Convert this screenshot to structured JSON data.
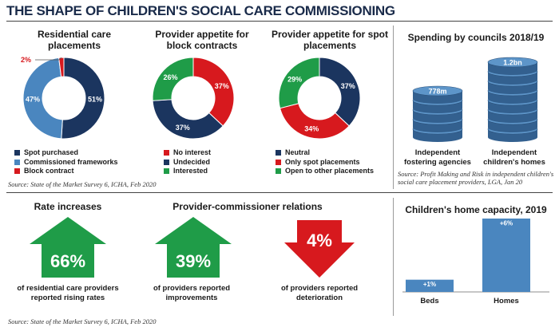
{
  "title": "THE SHAPE OF CHILDREN'S SOCIAL CARE COMMISSIONING",
  "colors": {
    "navy": "#1b355f",
    "blue": "#4a86bf",
    "red": "#d7191e",
    "green": "#1f9c48"
  },
  "donuts": [
    {
      "title": "Residential care placements",
      "slices": [
        {
          "label": "Spot purchased",
          "value": 51,
          "display": "51%",
          "color": "#1b355f"
        },
        {
          "label": "Commissioned frameworks",
          "value": 47,
          "display": "47%",
          "color": "#4a86bf"
        },
        {
          "label": "Block contract",
          "value": 2,
          "display": "2%",
          "color": "#d7191e"
        }
      ]
    },
    {
      "title": "Provider appetite for block contracts",
      "slices": [
        {
          "label": "No interest",
          "value": 37,
          "display": "37%",
          "color": "#d7191e"
        },
        {
          "label": "Undecided",
          "value": 37,
          "display": "37%",
          "color": "#1b355f"
        },
        {
          "label": "Interested",
          "value": 26,
          "display": "26%",
          "color": "#1f9c48"
        }
      ]
    },
    {
      "title": "Provider appetite for spot placements",
      "slices": [
        {
          "label": "Neutral",
          "value": 37,
          "display": "37%",
          "color": "#1b355f"
        },
        {
          "label": "Only spot placements",
          "value": 34,
          "display": "34%",
          "color": "#d7191e"
        },
        {
          "label": "Open to other placements",
          "value": 29,
          "display": "29%",
          "color": "#1f9c48"
        }
      ]
    }
  ],
  "source_left": "Source: State of the Market Survey 6, ICHA, Feb 2020",
  "spending": {
    "title": "Spending by councils 2018/19",
    "items": [
      {
        "label": "Independent fostering agencies",
        "value": "778m"
      },
      {
        "label": "Independent children's homes",
        "value": "1.2bn"
      }
    ],
    "source": "Source: Profit Making and Risk in independent children's social care placement providers, LGA, Jan 20"
  },
  "rates": [
    {
      "title": "Rate increases",
      "value": "66%",
      "direction": "up",
      "caption": "of residential care providers reported rising rates"
    },
    {
      "title": "Provider-commissioner relations",
      "value": "39%",
      "direction": "up",
      "caption": "of providers reported improvements"
    },
    {
      "title": "",
      "value": "4%",
      "direction": "down",
      "caption": "of providers reported deterioration"
    }
  ],
  "source_bottom": "Source: State of the Market Survey 6, ICHA, Feb 2020",
  "chart_data": {
    "type": "bar",
    "title": "Children's home capacity, 2019",
    "categories": [
      "Beds",
      "Homes"
    ],
    "values": [
      1,
      6
    ],
    "data_labels": [
      "+1%",
      "+6%"
    ],
    "ylim": [
      0,
      6
    ]
  }
}
